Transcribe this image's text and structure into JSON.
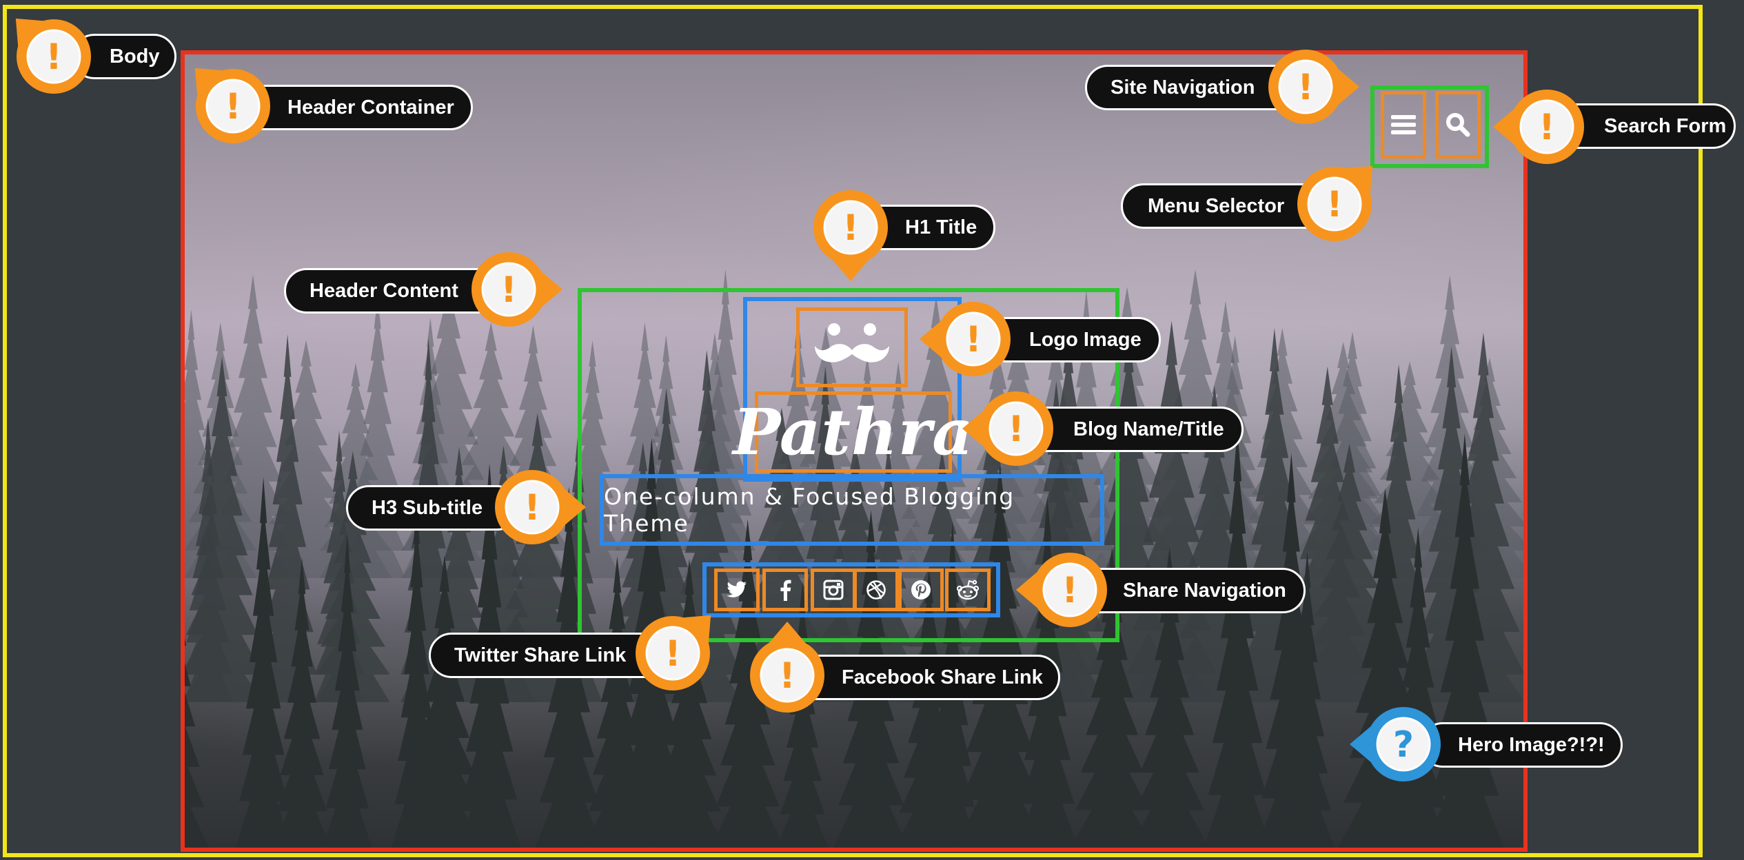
{
  "colors": {
    "body_outline": "#f2e61a",
    "header_container_outline": "#e8321e",
    "content_outline": "#2fc432",
    "element_outline": "#2f87e8",
    "item_outline": "#ee8a26",
    "callout_warning": "#f7941d",
    "callout_question": "#2d95d8",
    "background": "#353b3f"
  },
  "header": {
    "blog_name": "Pathra",
    "subtitle": "One-column & Focused Blogging Theme"
  },
  "icons": {
    "menu": "hamburger-icon",
    "search": "magnifier-icon",
    "logo": "mustache-icon",
    "share": [
      "twitter-icon",
      "facebook-icon",
      "instagram-icon",
      "dribbble-icon",
      "pinterest-icon",
      "reddit-icon"
    ]
  },
  "callouts": {
    "body": "Body",
    "header_container": "Header Container",
    "site_navigation": "Site Navigation",
    "search_form": "Search Form",
    "menu_selector": "Menu Selector",
    "h1_title": "H1 Title",
    "header_content": "Header Content",
    "logo_image": "Logo Image",
    "blog_name_title": "Blog Name/Title",
    "h3_subtitle": "H3 Sub-title",
    "share_navigation": "Share Navigation",
    "twitter_share_link": "Twitter Share Link",
    "facebook_share_link": "Facebook Share Link",
    "hero_image": "Hero Image?!?!"
  }
}
